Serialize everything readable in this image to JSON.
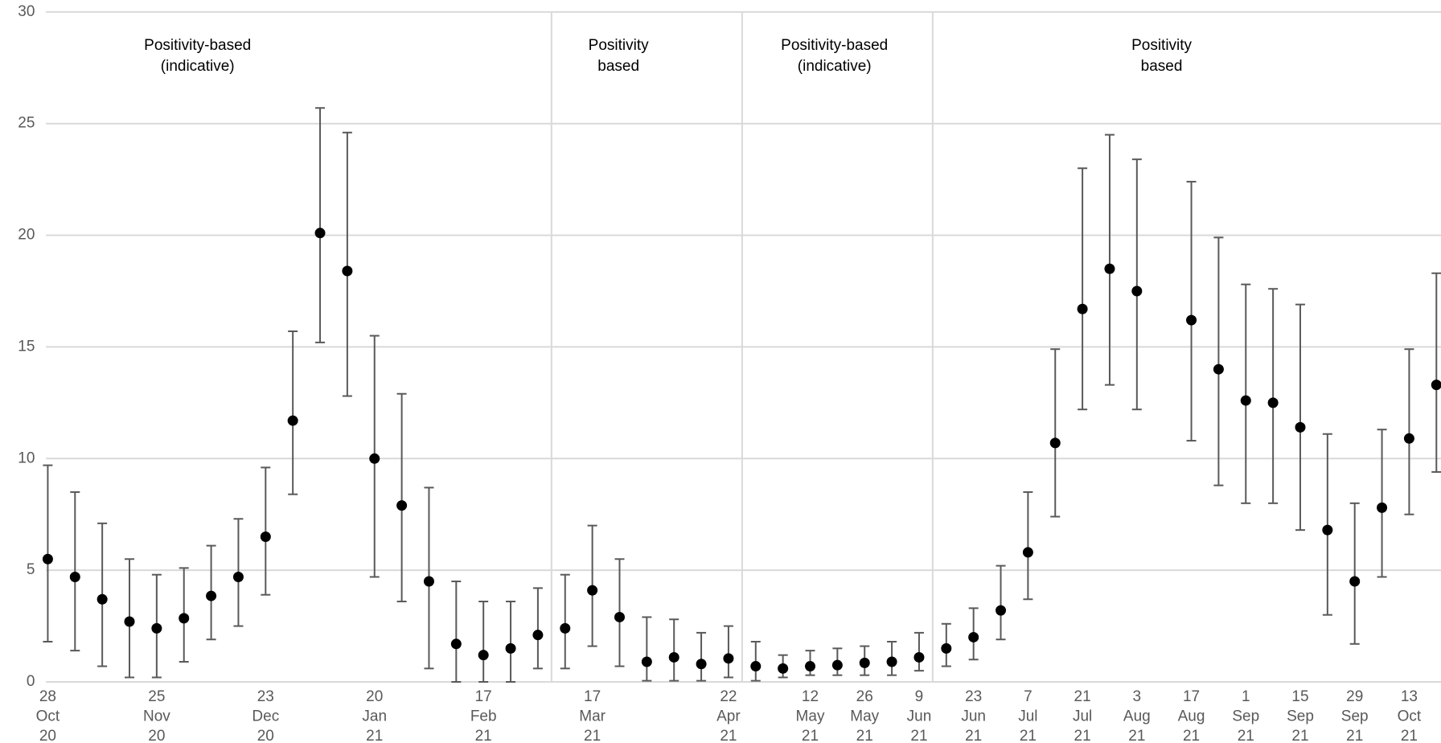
{
  "chart_data": {
    "type": "errorbar",
    "categories": [
      "28 Oct 20",
      null,
      null,
      null,
      "25 Nov 20",
      null,
      null,
      null,
      "23 Dec 20",
      null,
      null,
      null,
      "20 Jan 21",
      null,
      null,
      null,
      "17 Feb 21",
      null,
      null,
      null,
      "17 Mar 21",
      null,
      null,
      null,
      null,
      "22 Apr 21",
      null,
      null,
      "12 May 21",
      null,
      "26 May 21",
      null,
      "9 Jun 21",
      null,
      "23 Jun 21",
      null,
      "7 Jul 21",
      null,
      "21 Jul 21",
      null,
      "3 Aug 21",
      null,
      "17 Aug 21",
      null,
      "1 Sep 21",
      null,
      "15 Sep 21",
      null,
      "29 Sep 21",
      null,
      "13 Oct 21",
      null
    ],
    "values": [
      5.5,
      4.7,
      3.7,
      2.7,
      2.4,
      2.85,
      3.85,
      4.7,
      6.5,
      11.7,
      20.1,
      18.4,
      10.0,
      7.9,
      4.5,
      1.7,
      1.2,
      1.5,
      2.1,
      2.4,
      4.1,
      2.9,
      0.9,
      1.1,
      0.8,
      1.05,
      0.7,
      0.6,
      0.7,
      0.75,
      0.85,
      0.9,
      1.1,
      1.5,
      2.0,
      3.2,
      5.8,
      10.7,
      16.7,
      18.5,
      17.5,
      null,
      16.2,
      14.0,
      12.6,
      12.5,
      11.4,
      6.8,
      4.5,
      7.8,
      10.9,
      13.3
    ],
    "lower": [
      1.8,
      1.4,
      0.7,
      0.2,
      0.2,
      0.9,
      1.9,
      2.5,
      3.9,
      8.4,
      15.2,
      12.8,
      4.7,
      3.6,
      0.6,
      0,
      0,
      0,
      0.6,
      0.6,
      1.6,
      0.7,
      0.05,
      0.05,
      0.05,
      0.2,
      0.05,
      0.2,
      0.3,
      0.3,
      0.3,
      0.3,
      0.5,
      0.7,
      1.0,
      1.9,
      3.7,
      7.4,
      12.2,
      13.3,
      12.2,
      null,
      10.8,
      8.8,
      8.0,
      8.0,
      6.8,
      3.0,
      1.7,
      4.7,
      7.5,
      9.4
    ],
    "upper": [
      9.7,
      8.5,
      7.1,
      5.5,
      4.8,
      5.1,
      6.1,
      7.3,
      9.6,
      15.7,
      25.7,
      24.6,
      15.5,
      12.9,
      8.7,
      4.5,
      3.6,
      3.6,
      4.2,
      4.8,
      7.0,
      5.5,
      2.9,
      2.8,
      2.2,
      2.5,
      1.8,
      1.2,
      1.4,
      1.5,
      1.6,
      1.8,
      2.2,
      2.6,
      3.3,
      5.2,
      8.5,
      14.9,
      23.0,
      24.5,
      23.4,
      null,
      22.4,
      19.9,
      17.8,
      17.6,
      16.9,
      11.1,
      8.0,
      11.3,
      14.9,
      18.3
    ],
    "color": "#000000",
    "error_color": "#595959",
    "annotations": [
      "Positivity-based (indicative)",
      "Positivity based",
      "Positivity-based (indicative)",
      "Positivity based"
    ],
    "ylim": [
      0,
      30
    ],
    "yticks": [
      0,
      5,
      10,
      15,
      20,
      25,
      30
    ],
    "grid": true
  }
}
